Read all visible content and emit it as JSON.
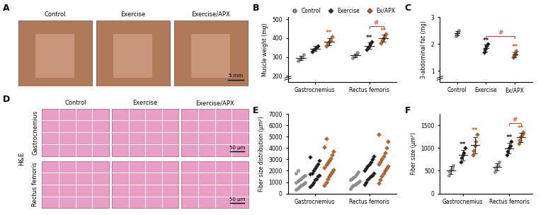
{
  "chart_data": [
    {
      "panel": "B",
      "type": "strip",
      "y_label": "Muscle weight (mg)",
      "categories": [
        "Gastrocnemius",
        "Rectus femoris"
      ],
      "ylim": [
        170,
        510
      ],
      "yticks": [
        200,
        300,
        400,
        500
      ],
      "legend": "top",
      "series": [
        {
          "name": "Control",
          "color": "#9a9a9a",
          "marker": "circle",
          "values": [
            [
              280,
              288,
              295,
              300,
              312
            ],
            [
              295,
              302,
              310,
              315,
              323
            ]
          ],
          "means": [
            295,
            309
          ],
          "errors": [
            10,
            10
          ]
        },
        {
          "name": "Exercise",
          "color": "#1a1a1a",
          "marker": "diamond",
          "values": [
            [
              330,
              338,
              345,
              352,
              360
            ],
            [
              340,
              350,
              360,
              368,
              382
            ]
          ],
          "means": [
            345,
            360
          ],
          "errors": [
            12,
            16
          ]
        },
        {
          "name": "Ex/APX",
          "color": "#c8641e",
          "marker": "diamond",
          "values": [
            [
              360,
              372,
              380,
              390,
              408
            ],
            [
              375,
              390,
              398,
              408,
              420
            ]
          ],
          "means": [
            382,
            398
          ],
          "errors": [
            19,
            19
          ]
        }
      ],
      "annotations": [
        {
          "text": "**",
          "series": "Ex/APX",
          "category": "Gastrocnemius",
          "y": 410
        },
        {
          "text": "**",
          "series": "Exercise",
          "category": "Rectus femoris",
          "y": 384
        },
        {
          "text": "**",
          "series": "Ex/APX",
          "category": "Rectus femoris",
          "y": 422
        },
        {
          "text": "#",
          "from": "Exercise",
          "to": "Ex/APX",
          "category": "Rectus femoris",
          "y": 462
        }
      ]
    },
    {
      "panel": "C",
      "type": "strip",
      "y_label": "3-abdominal fat (mg)",
      "ylim": [
        0.6,
        3.0
      ],
      "yticks": [
        1,
        2,
        3
      ],
      "series": [
        {
          "name": "Control",
          "color": "#9a9a9a",
          "marker": "circle",
          "values": [
            [
              2.3,
              2.35,
              2.4,
              2.45,
              2.5
            ]
          ],
          "means": [
            2.4
          ],
          "errors": [
            0.08
          ]
        },
        {
          "name": "Exercise",
          "color": "#1a1a1a",
          "marker": "diamond",
          "values": [
            [
              1.7,
              1.8,
              1.85,
              1.93,
              2.0
            ]
          ],
          "means": [
            1.86
          ],
          "errors": [
            0.13
          ]
        },
        {
          "name": "Ex/APX",
          "color": "#c8641e",
          "marker": "diamond",
          "values": [
            [
              1.5,
              1.56,
              1.6,
              1.65,
              1.75
            ]
          ],
          "means": [
            1.61
          ],
          "errors": [
            0.09
          ]
        }
      ],
      "annotations": [
        {
          "text": "**",
          "series": "Exercise",
          "y": 2.02
        },
        {
          "text": "**",
          "series": "Ex/APX",
          "y": 1.77
        },
        {
          "text": "#",
          "from": "Exercise",
          "to": "Ex/APX",
          "y": 2.3
        }
      ]
    },
    {
      "panel": "E",
      "type": "strip",
      "y_label": "Fiber size distribution (μm²)",
      "categories": [
        "Gastrocnemius",
        "Rectus femoris"
      ],
      "ylim": [
        0,
        7000
      ],
      "yticks": [
        0,
        1000,
        2000,
        3000,
        4000,
        5000,
        6000,
        7000
      ],
      "series": [
        {
          "name": "Control",
          "color": "#9a9a9a",
          "marker": "circle",
          "values": [
            [
              350,
              500,
              600,
              700,
              800,
              850,
              950,
              1000,
              1100,
              1200,
              1300,
              1400,
              1500,
              1600,
              1800,
              2000
            ],
            [
              400,
              600,
              700,
              800,
              900,
              1000,
              1100,
              1200,
              1300,
              1400,
              1500,
              1700,
              1900
            ]
          ]
        },
        {
          "name": "Exercise",
          "color": "#1a1a1a",
          "marker": "diamond",
          "values": [
            [
              600,
              800,
              1000,
              1200,
              1300,
              1500,
              1600,
              1700,
              1800,
              2000,
              2200,
              2400,
              2600,
              2900,
              3200
            ],
            [
              800,
              1000,
              1200,
              1400,
              1500,
              1600,
              1800,
              2000,
              2200,
              2400,
              2600,
              2800,
              3000,
              3300
            ]
          ]
        },
        {
          "name": "Ex/APX",
          "color": "#c8641e",
          "marker": "diamond",
          "values": [
            [
              700,
              1000,
              1300,
              1500,
              1700,
              1900,
              2100,
              2300,
              2500,
              2700,
              2900,
              3100,
              3400,
              3700,
              4100,
              4800
            ],
            [
              900,
              1200,
              1500,
              1800,
              2000,
              2200,
              2400,
              2600,
              2800,
              3000,
              3300,
              3600,
              4000,
              4600,
              5200
            ]
          ]
        }
      ]
    },
    {
      "panel": "F",
      "type": "strip",
      "y_label": "Fiber size (μm²)",
      "categories": [
        "Gastrocnemius",
        "Rectus femoris"
      ],
      "ylim": [
        0,
        1750
      ],
      "yticks": [
        0,
        500,
        1000,
        1500
      ],
      "series": [
        {
          "name": "Control",
          "color": "#9a9a9a",
          "marker": "circle",
          "values": [
            [
              400,
              470,
              520,
              560,
              620
            ],
            [
              480,
              550,
              600,
              620,
              700
            ]
          ],
          "means": [
            514,
            590
          ],
          "errors": [
            83,
            80
          ]
        },
        {
          "name": "Exercise",
          "color": "#1a1a1a",
          "marker": "diamond",
          "values": [
            [
              700,
              780,
              850,
              900,
              1000
            ],
            [
              850,
              930,
              1000,
              1050,
              1150
            ]
          ],
          "means": [
            846,
            996
          ],
          "errors": [
            114,
            112
          ]
        },
        {
          "name": "Ex/APX",
          "color": "#c8641e",
          "marker": "diamond",
          "values": [
            [
              850,
              950,
              1050,
              1150,
              1300
            ],
            [
              1100,
              1180,
              1250,
              1300,
              1350
            ]
          ],
          "means": [
            1060,
            1236
          ],
          "errors": [
            175,
            100
          ]
        }
      ],
      "annotations": [
        {
          "text": "**",
          "series": "Exercise",
          "category": "Gastrocnemius",
          "y": 1010
        },
        {
          "text": "**",
          "series": "Ex/APX",
          "category": "Gastrocnemius",
          "y": 1310
        },
        {
          "text": "**",
          "series": "Exercise",
          "category": "Rectus femoris",
          "y": 1160
        },
        {
          "text": "**",
          "series": "Ex/APX",
          "category": "Rectus femoris",
          "y": 1360
        },
        {
          "text": "#",
          "from": "Exercise",
          "to": "Ex/APX",
          "category": "Rectus femoris",
          "y": 1550
        }
      ]
    }
  ],
  "images": [
    {
      "panel": "A",
      "columns": [
        "Control",
        "Exercise",
        "Exercise/APX"
      ],
      "scale_bar": "5 mm"
    },
    {
      "panel": "D",
      "columns": [
        "Control",
        "Exercise",
        "Exercise/APX"
      ],
      "stain": "H&E",
      "rows": [
        "Gastrocnemius",
        "Rectus femoris"
      ],
      "scale_bar": "50 μm"
    }
  ]
}
